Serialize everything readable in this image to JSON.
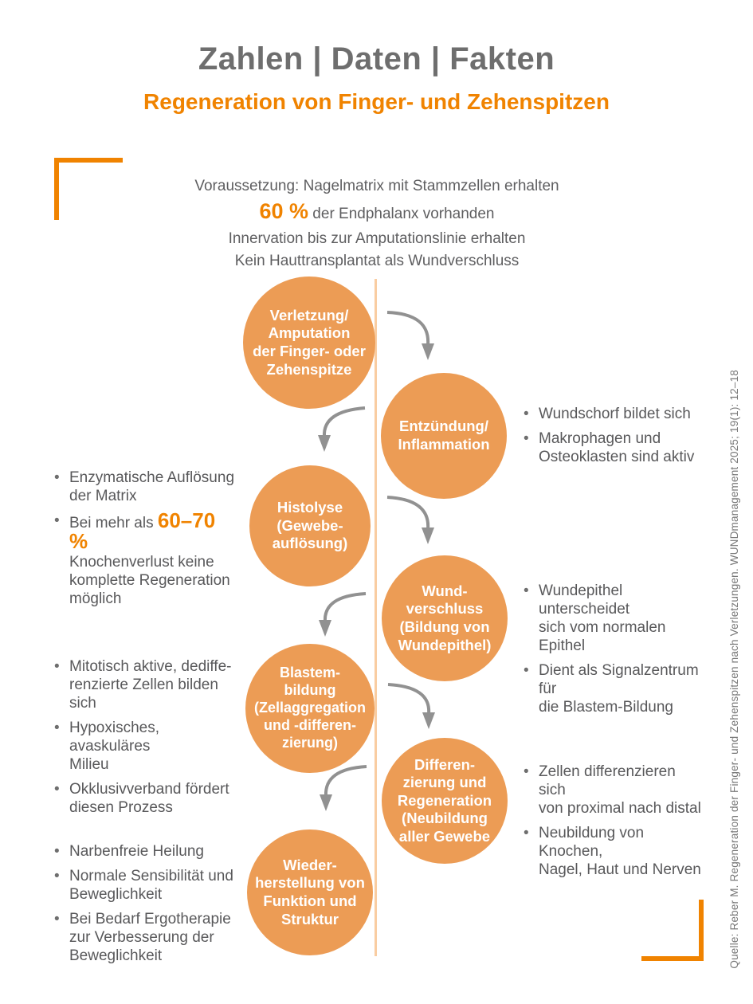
{
  "header": {
    "title": "Zahlen | Daten | Fakten",
    "subtitle": "Regeneration von Finger- und Zehenspitzen"
  },
  "prerequisites": {
    "line1": "Voraussetzung: Nagelmatrix mit Stammzellen erhalten",
    "line2_highlight": "60 %",
    "line2_rest": " der Endphalanx vorhanden",
    "line3": "Innervation bis zur Amputationslinie erhalten",
    "line4": "Kein Hauttransplantat als Wundverschluss"
  },
  "flow": {
    "steps": [
      {
        "label": "Verletzung/\nAmputation\nder Finger- oder\nZehenspitze",
        "side": "left"
      },
      {
        "label": "Entzündung/\nInflammation",
        "side": "right"
      },
      {
        "label": "Histolyse\n(Gewebe-\nauflösung)",
        "side": "left"
      },
      {
        "label": "Wund-\nverschluss\n(Bildung von\nWundepithel)",
        "side": "right"
      },
      {
        "label": "Blastem-\nbildung\n(Zellaggregation\nund -differen-\nzierung)",
        "side": "left"
      },
      {
        "label": "Differen-\nzierung und\nRegeneration\n(Neubildung\naller Gewebe",
        "side": "right"
      },
      {
        "label": "Wieder-\nherstellung von\nFunktion und\nStruktur",
        "side": "left"
      }
    ]
  },
  "annotations": [
    {
      "id": "n2",
      "side": "right",
      "items": [
        [
          {
            "t": "Wundschorf bildet sich"
          }
        ],
        [
          {
            "t": "Makrophagen und\nOsteoklasten sind aktiv"
          }
        ]
      ]
    },
    {
      "id": "n3",
      "side": "left",
      "items": [
        [
          {
            "t": "Enzymatische Auflösung\nder Matrix"
          }
        ],
        [
          {
            "t": "Bei mehr als "
          },
          {
            "t": "60–70 %",
            "hl": true
          },
          {
            "t": "\nKnochenverlust keine\nkomplette Regeneration\nmöglich"
          }
        ]
      ]
    },
    {
      "id": "n4",
      "side": "right",
      "items": [
        [
          {
            "t": "Wundepithel unterscheidet\nsich vom normalen Epithel"
          }
        ],
        [
          {
            "t": "Dient als Signalzentrum für\ndie Blastem-Bildung"
          }
        ]
      ]
    },
    {
      "id": "n5",
      "side": "left",
      "items": [
        [
          {
            "t": "Mitotisch aktive, dediffe-\nrenzierte Zellen bilden sich"
          }
        ],
        [
          {
            "t": "Hypoxisches, avaskuläres\nMilieu"
          }
        ],
        [
          {
            "t": "Okklusivverband fördert\ndiesen Prozess"
          }
        ]
      ]
    },
    {
      "id": "n6",
      "side": "right",
      "items": [
        [
          {
            "t": "Zellen differenzieren sich\nvon proximal nach distal"
          }
        ],
        [
          {
            "t": "Neubildung von Knochen,\nNagel, Haut und Nerven"
          }
        ]
      ]
    },
    {
      "id": "n7",
      "side": "left",
      "items": [
        [
          {
            "t": "Narbenfreie Heilung"
          }
        ],
        [
          {
            "t": "Normale Sensibilität und\nBeweglichkeit"
          }
        ],
        [
          {
            "t": "Bei Bedarf Ergotherapie\nzur Verbesserung der\nBeweglichkeit"
          }
        ]
      ]
    }
  ],
  "source": "Quelle: Reber M. Regeneration der Finger- und Zehenspitzen nach Verletzungen. WUNDmanagement 2025; 19(1): 12–18",
  "colors": {
    "title_gray": "#6e6e6e",
    "accent_orange": "#f08300",
    "circle_orange": "#ec9c55",
    "spine_peach": "#f9cda2",
    "arrow_gray": "#919191",
    "text_gray": "#58585a"
  }
}
